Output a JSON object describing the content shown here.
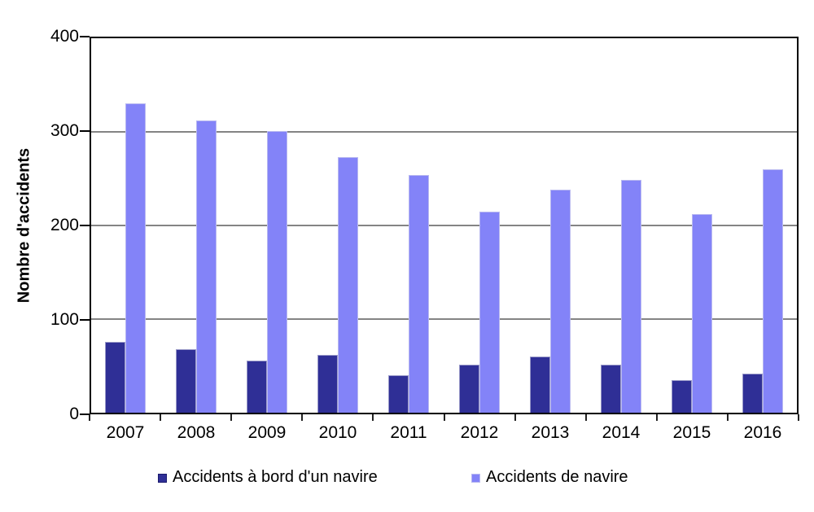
{
  "chart_data": {
    "type": "bar",
    "title": "",
    "categories": [
      "2007",
      "2008",
      "2009",
      "2010",
      "2011",
      "2012",
      "2013",
      "2014",
      "2015",
      "2016"
    ],
    "series": [
      {
        "name": "Accidents à bord d'un navire",
        "color": "#2F2F96",
        "border_color": "#9A9AC8",
        "values": [
          76,
          68,
          56,
          62,
          40,
          51,
          60,
          51,
          35,
          42
        ]
      },
      {
        "name": "Accidents de navire",
        "color": "#8383F8",
        "border_color": "#B9B9F0",
        "values": [
          330,
          312,
          301,
          273,
          254,
          215,
          238,
          249,
          212,
          260
        ]
      }
    ],
    "xlabel": "",
    "ylabel": "Nombre d'accidents",
    "ylim": [
      0,
      400
    ],
    "yticks": [
      0,
      100,
      200,
      300,
      400
    ],
    "grid": true,
    "gridline_color": "#848484",
    "axis_color": "#000000",
    "background_color": "#FFFFFF",
    "legend_position": "bottom"
  }
}
